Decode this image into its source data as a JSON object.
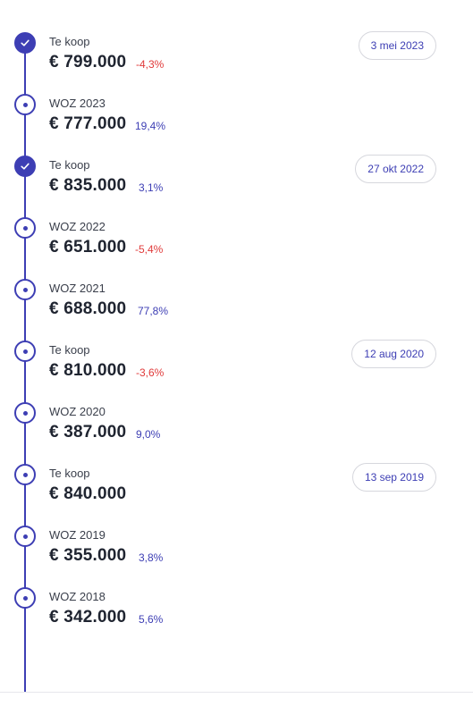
{
  "colors": {
    "accent": "#3d3eb4",
    "negative": "#e03a3a",
    "positive": "#3d3eb4",
    "text": "#1f2430",
    "pill_border": "#d6d7dd"
  },
  "entries": [
    {
      "label": "Te koop",
      "price": "€ 799.000",
      "change": "-4,3%",
      "change_type": "negative",
      "date": "3 mei 2023",
      "marker": "check-icon"
    },
    {
      "label": "WOZ 2023",
      "price": "€ 777.000",
      "change": "19,4%",
      "change_type": "positive",
      "date": "",
      "marker": "dot-icon"
    },
    {
      "label": "Te koop",
      "price": "€ 835.000",
      "change": "3,1%",
      "change_type": "positive",
      "date": "27 okt 2022",
      "marker": "check-icon"
    },
    {
      "label": "WOZ 2022",
      "price": "€ 651.000",
      "change": "-5,4%",
      "change_type": "negative",
      "date": "",
      "marker": "dot-icon"
    },
    {
      "label": "WOZ 2021",
      "price": "€ 688.000",
      "change": "77,8%",
      "change_type": "positive",
      "date": "",
      "marker": "dot-icon"
    },
    {
      "label": "Te koop",
      "price": "€ 810.000",
      "change": "-3,6%",
      "change_type": "negative",
      "date": "12 aug 2020",
      "marker": "dot-icon"
    },
    {
      "label": "WOZ 2020",
      "price": "€ 387.000",
      "change": "9,0%",
      "change_type": "positive",
      "date": "",
      "marker": "dot-icon"
    },
    {
      "label": "Te koop",
      "price": "€ 840.000",
      "change": "",
      "change_type": "",
      "date": "13 sep 2019",
      "marker": "dot-icon"
    },
    {
      "label": "WOZ 2019",
      "price": "€ 355.000",
      "change": "3,8%",
      "change_type": "positive",
      "date": "",
      "marker": "dot-icon"
    },
    {
      "label": "WOZ 2018",
      "price": "€ 342.000",
      "change": "5,6%",
      "change_type": "positive",
      "date": "",
      "marker": "dot-icon"
    }
  ]
}
